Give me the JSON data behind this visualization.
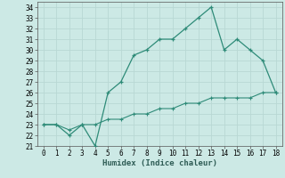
{
  "xlabel": "Humidex (Indice chaleur)",
  "x": [
    0,
    1,
    2,
    3,
    4,
    5,
    6,
    7,
    8,
    9,
    10,
    11,
    12,
    13,
    14,
    15,
    16,
    17,
    18
  ],
  "y_curve": [
    23,
    23,
    22,
    23,
    21,
    26,
    27,
    29.5,
    30,
    31,
    31,
    32,
    33,
    34,
    30,
    31,
    30,
    29,
    26
  ],
  "y_line": [
    23,
    23,
    22.5,
    23,
    23,
    23.5,
    23.5,
    24,
    24,
    24.5,
    24.5,
    25,
    25,
    25.5,
    25.5,
    25.5,
    25.5,
    26,
    26
  ],
  "color": "#2e8b78",
  "bg_color": "#cce9e5",
  "grid_color": "#b8d8d4",
  "ylim": [
    21,
    34.5
  ],
  "xlim": [
    -0.5,
    18.5
  ],
  "yticks": [
    21,
    22,
    23,
    24,
    25,
    26,
    27,
    28,
    29,
    30,
    31,
    32,
    33,
    34
  ],
  "xticks": [
    0,
    1,
    2,
    3,
    4,
    5,
    6,
    7,
    8,
    9,
    10,
    11,
    12,
    13,
    14,
    15,
    16,
    17,
    18
  ],
  "tick_fontsize": 5.5,
  "label_fontsize": 6.5
}
